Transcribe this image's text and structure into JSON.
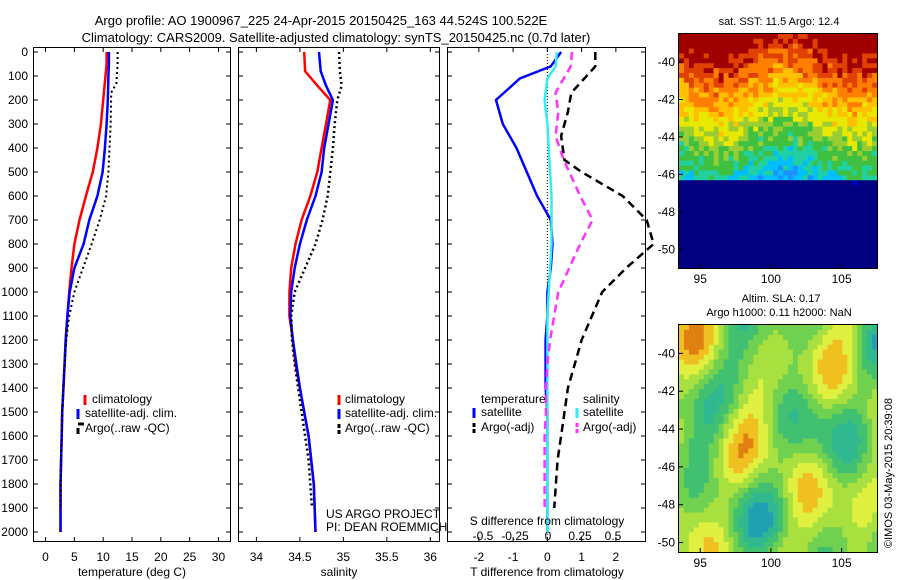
{
  "header": {
    "line1": "Argo profile: AO 1900967_225 24-Apr-2015 20150425_163 44.524S 100.522E",
    "line2": "Climatology: CARS2009. Satellite-adjusted climatology: synTS_20150425.nc (0.7d later)"
  },
  "depth_ticks": [
    "0",
    "100",
    "200",
    "300",
    "400",
    "500",
    "600",
    "700",
    "800",
    "900",
    "1000",
    "1100",
    "1200",
    "1300",
    "1400",
    "1500",
    "1600",
    "1700",
    "1800",
    "1900",
    "2000"
  ],
  "colors": {
    "climatology": "#ff0000",
    "satellite": "#0000ff",
    "argo": "#000000",
    "satellite_s": "#33eeee",
    "argo_s": "#ff33ff"
  },
  "credit": {
    "line1": "US ARGO PROJECT",
    "line2": "PI: DEAN ROEMMICH"
  },
  "stamp": "©IMOS 03-May-2015 20:39:08",
  "chart_data": [
    {
      "type": "line",
      "xlabel": "temperature (deg C)",
      "ylabel": "",
      "xlim": [
        -2,
        32
      ],
      "ylim": [
        2060,
        0
      ],
      "xticks": [
        "0",
        "5",
        "10",
        "15",
        "20",
        "25",
        "30"
      ],
      "legend": [
        "climatology",
        "satellite-adj. clim.",
        "Argo(..raw -QC)"
      ],
      "series": [
        {
          "name": "climatology",
          "x": [
            10.6,
            10.6,
            10.4,
            10,
            9.6,
            9,
            8.2,
            7,
            5.9,
            5,
            4.5,
            4.1,
            3.8,
            3.5,
            3.3,
            3.1,
            2.9,
            2.8,
            2.7,
            2.6,
            2.6
          ],
          "y": [
            0,
            50,
            100,
            200,
            300,
            400,
            500,
            600,
            700,
            800,
            900,
            1000,
            1100,
            1200,
            1300,
            1400,
            1500,
            1600,
            1700,
            1800,
            2000
          ]
        },
        {
          "name": "satellite-adj. clim.",
          "x": [
            11,
            11,
            10.9,
            10.8,
            10.6,
            10.3,
            9.9,
            9,
            7.6,
            6.6,
            5,
            4.2,
            3.8,
            3.5,
            3.3,
            3.1,
            2.9,
            2.8,
            2.7,
            2.6,
            2.6
          ],
          "y": [
            0,
            50,
            100,
            200,
            300,
            400,
            500,
            600,
            700,
            800,
            900,
            1000,
            1100,
            1200,
            1300,
            1400,
            1500,
            1600,
            1700,
            1800,
            2000
          ]
        },
        {
          "name": "Argo(..raw -QC)",
          "x": [
            12.5,
            12.5,
            12.3,
            11.4,
            11.3,
            11.1,
            10.9,
            10.5,
            9.4,
            8,
            6.5,
            5,
            4.1,
            3.6,
            3.3,
            3.1,
            2.9,
            2.8,
            2.7,
            2.6
          ],
          "y": [
            0,
            50,
            130,
            170,
            300,
            400,
            500,
            600,
            700,
            800,
            900,
            1000,
            1100,
            1200,
            1300,
            1400,
            1500,
            1600,
            1700,
            1900
          ]
        }
      ]
    },
    {
      "type": "line",
      "xlabel": "salinity",
      "ylabel": "",
      "xlim": [
        33.8,
        36.1
      ],
      "ylim": [
        2060,
        0
      ],
      "xticks": [
        "34",
        "34.5",
        "35",
        "35.5",
        "36"
      ],
      "legend": [
        "climatology",
        "satellite-adj. clim.",
        "Argo(..raw -QC)"
      ],
      "series": [
        {
          "name": "climatology",
          "x": [
            34.55,
            34.56,
            34.7,
            34.85,
            34.8,
            34.75,
            34.7,
            34.62,
            34.52,
            34.45,
            34.4,
            34.38,
            34.38,
            34.42,
            34.45,
            34.5,
            34.55,
            34.6,
            34.63,
            34.66,
            34.68
          ],
          "y": [
            0,
            80,
            140,
            200,
            300,
            400,
            500,
            600,
            700,
            800,
            900,
            1000,
            1100,
            1200,
            1300,
            1400,
            1500,
            1600,
            1700,
            1800,
            2000
          ]
        },
        {
          "name": "satellite-adj. clim.",
          "x": [
            34.72,
            34.74,
            34.8,
            34.88,
            34.83,
            34.78,
            34.75,
            34.68,
            34.58,
            34.5,
            34.44,
            34.4,
            34.39,
            34.42,
            34.46,
            34.5,
            34.55,
            34.6,
            34.63,
            34.66,
            34.68
          ],
          "y": [
            0,
            80,
            140,
            200,
            300,
            400,
            500,
            600,
            700,
            800,
            900,
            1000,
            1100,
            1200,
            1300,
            1400,
            1500,
            1600,
            1700,
            1800,
            2000
          ]
        },
        {
          "name": "Argo(..raw -QC)",
          "x": [
            34.95,
            34.96,
            34.98,
            34.93,
            34.9,
            34.88,
            34.85,
            34.82,
            34.76,
            34.68,
            34.56,
            34.44,
            34.4,
            34.41,
            34.44,
            34.48,
            34.52,
            34.56,
            34.6,
            34.64
          ],
          "y": [
            0,
            80,
            140,
            200,
            300,
            400,
            500,
            600,
            700,
            800,
            900,
            1000,
            1100,
            1200,
            1300,
            1400,
            1500,
            1600,
            1700,
            1900
          ]
        }
      ]
    },
    {
      "type": "line",
      "xlabel": "T difference from climatology",
      "x2label": "S difference from climatology",
      "ylabel": "",
      "xlim": [
        -2.9,
        2.85
      ],
      "ylim": [
        2060,
        0
      ],
      "xticks": [
        "-2",
        "-1",
        "0",
        "1",
        "2"
      ],
      "x2ticks": [
        "-0.5",
        "-0.25",
        "0",
        "0.25",
        "0.5"
      ],
      "legend_headers": [
        "temperature",
        "salinity"
      ],
      "legend": [
        "satellite",
        "Argo(-adj)",
        "satellite",
        "Argo(-adj)"
      ],
      "series": [
        {
          "name": "satellite",
          "x": [
            0.4,
            0.1,
            -0.8,
            -1.5,
            -1.3,
            -0.9,
            -0.6,
            -0.3,
            0.1,
            0.15,
            0.1,
            0,
            0,
            -0.05,
            -0.05,
            -0.05,
            0,
            0,
            0,
            0,
            0
          ],
          "y": [
            0,
            60,
            110,
            200,
            300,
            400,
            500,
            600,
            700,
            800,
            900,
            1000,
            1100,
            1200,
            1300,
            1400,
            1500,
            1600,
            1700,
            1800,
            2000
          ]
        },
        {
          "name": "Argo(-adj)",
          "x": [
            1.4,
            1.4,
            0.7,
            0.6,
            0.4,
            0.5,
            1.0,
            2.2,
            2.9,
            3.1,
            2.3,
            1.6,
            1.3,
            1.0,
            0.8,
            0.6,
            0.5,
            0.4,
            0.3,
            0.2
          ],
          "y": [
            0,
            60,
            170,
            250,
            350,
            450,
            500,
            600,
            700,
            800,
            900,
            1000,
            1100,
            1200,
            1300,
            1400,
            1500,
            1600,
            1700,
            1900
          ]
        },
        {
          "name": "satellite",
          "x": [
            0.07,
            0.06,
            0,
            -0.02,
            0,
            0.01,
            0.02,
            0.03,
            0.03,
            0.03,
            0.02,
            0.01,
            0,
            0,
            0,
            0,
            0,
            0,
            0,
            0,
            0
          ],
          "y": [
            0,
            60,
            110,
            200,
            300,
            400,
            500,
            600,
            700,
            800,
            900,
            1000,
            1100,
            1200,
            1300,
            1400,
            1500,
            1600,
            1700,
            1800,
            2000
          ]
        },
        {
          "name": "Argo(-adj)",
          "x": [
            0.18,
            0.17,
            0.06,
            0.08,
            0.06,
            0.12,
            0.16,
            0.24,
            0.33,
            0.24,
            0.16,
            0.08,
            0.05,
            0.02,
            0,
            -0.01,
            -0.01,
            -0.02,
            -0.02,
            -0.02
          ],
          "y": [
            0,
            60,
            170,
            250,
            350,
            450,
            500,
            600,
            700,
            800,
            900,
            1000,
            1100,
            1200,
            1300,
            1400,
            1500,
            1600,
            1700,
            1900
          ]
        }
      ]
    },
    {
      "type": "heatmap",
      "title": "sat. SST: 11.5 Argo: 12.4",
      "xticks": [
        "95",
        "100",
        "105"
      ],
      "yticks": [
        "-40",
        "-42",
        "-44",
        "-46",
        "-48",
        "-50"
      ],
      "xlim": [
        93.5,
        107.5
      ],
      "ylim": [
        -51,
        -38.5
      ],
      "colormap": [
        "#000080",
        "#0000cd",
        "#1e90ff",
        "#00bfff",
        "#20d0a0",
        "#40c040",
        "#9acd32",
        "#e8e800",
        "#ffc000",
        "#ff7f00",
        "#e04000",
        "#a00000"
      ]
    },
    {
      "type": "heatmap",
      "title_line1": "Altim. SLA: 0.17",
      "title_line2": "Argo h1000: 0.11 h2000: NaN",
      "xticks": [
        "95",
        "100",
        "105"
      ],
      "yticks": [
        "-40",
        "-42",
        "-44",
        "-46",
        "-48",
        "-50"
      ],
      "xlim": [
        93.5,
        107.5
      ],
      "ylim": [
        -50.5,
        -38.5
      ],
      "colormap": [
        "#20a0b0",
        "#30b890",
        "#40c070",
        "#70d050",
        "#a8e040",
        "#e0f040",
        "#f0c020",
        "#e08010"
      ]
    }
  ]
}
